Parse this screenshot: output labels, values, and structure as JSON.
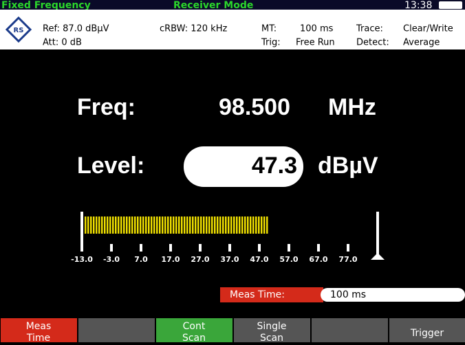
{
  "header": {
    "mode_left": "Fixed Frequency",
    "mode_center": "Receiver Mode",
    "time": "13:38"
  },
  "info": {
    "ref": "Ref: 87.0 dBµV",
    "att": "Att: 0 dB",
    "rbw": "cRBW: 120 kHz",
    "mt_label": "MT:",
    "mt_value": "100 ms",
    "trig_label": "Trig:",
    "trig_value": "Free Run",
    "trace_label": "Trace:",
    "trace_value": "Clear/Write",
    "detect_label": "Detect:",
    "detect_value": "Average"
  },
  "display": {
    "freq_label": "Freq:",
    "freq_value": "98.500",
    "freq_unit": "MHz",
    "level_label": "Level:",
    "level_value": "47.3",
    "level_unit": "dBµV"
  },
  "meter": {
    "ticks": [
      "-13.0",
      "-3.0",
      "7.0",
      "17.0",
      "27.0",
      "37.0",
      "47.0",
      "57.0",
      "67.0",
      "77.0"
    ]
  },
  "meas_time": {
    "label": "Meas Time:",
    "value": "100 ms"
  },
  "softkeys": [
    "Meas Time",
    "",
    "Cont Scan",
    "Single Scan",
    "",
    "Trigger"
  ]
}
